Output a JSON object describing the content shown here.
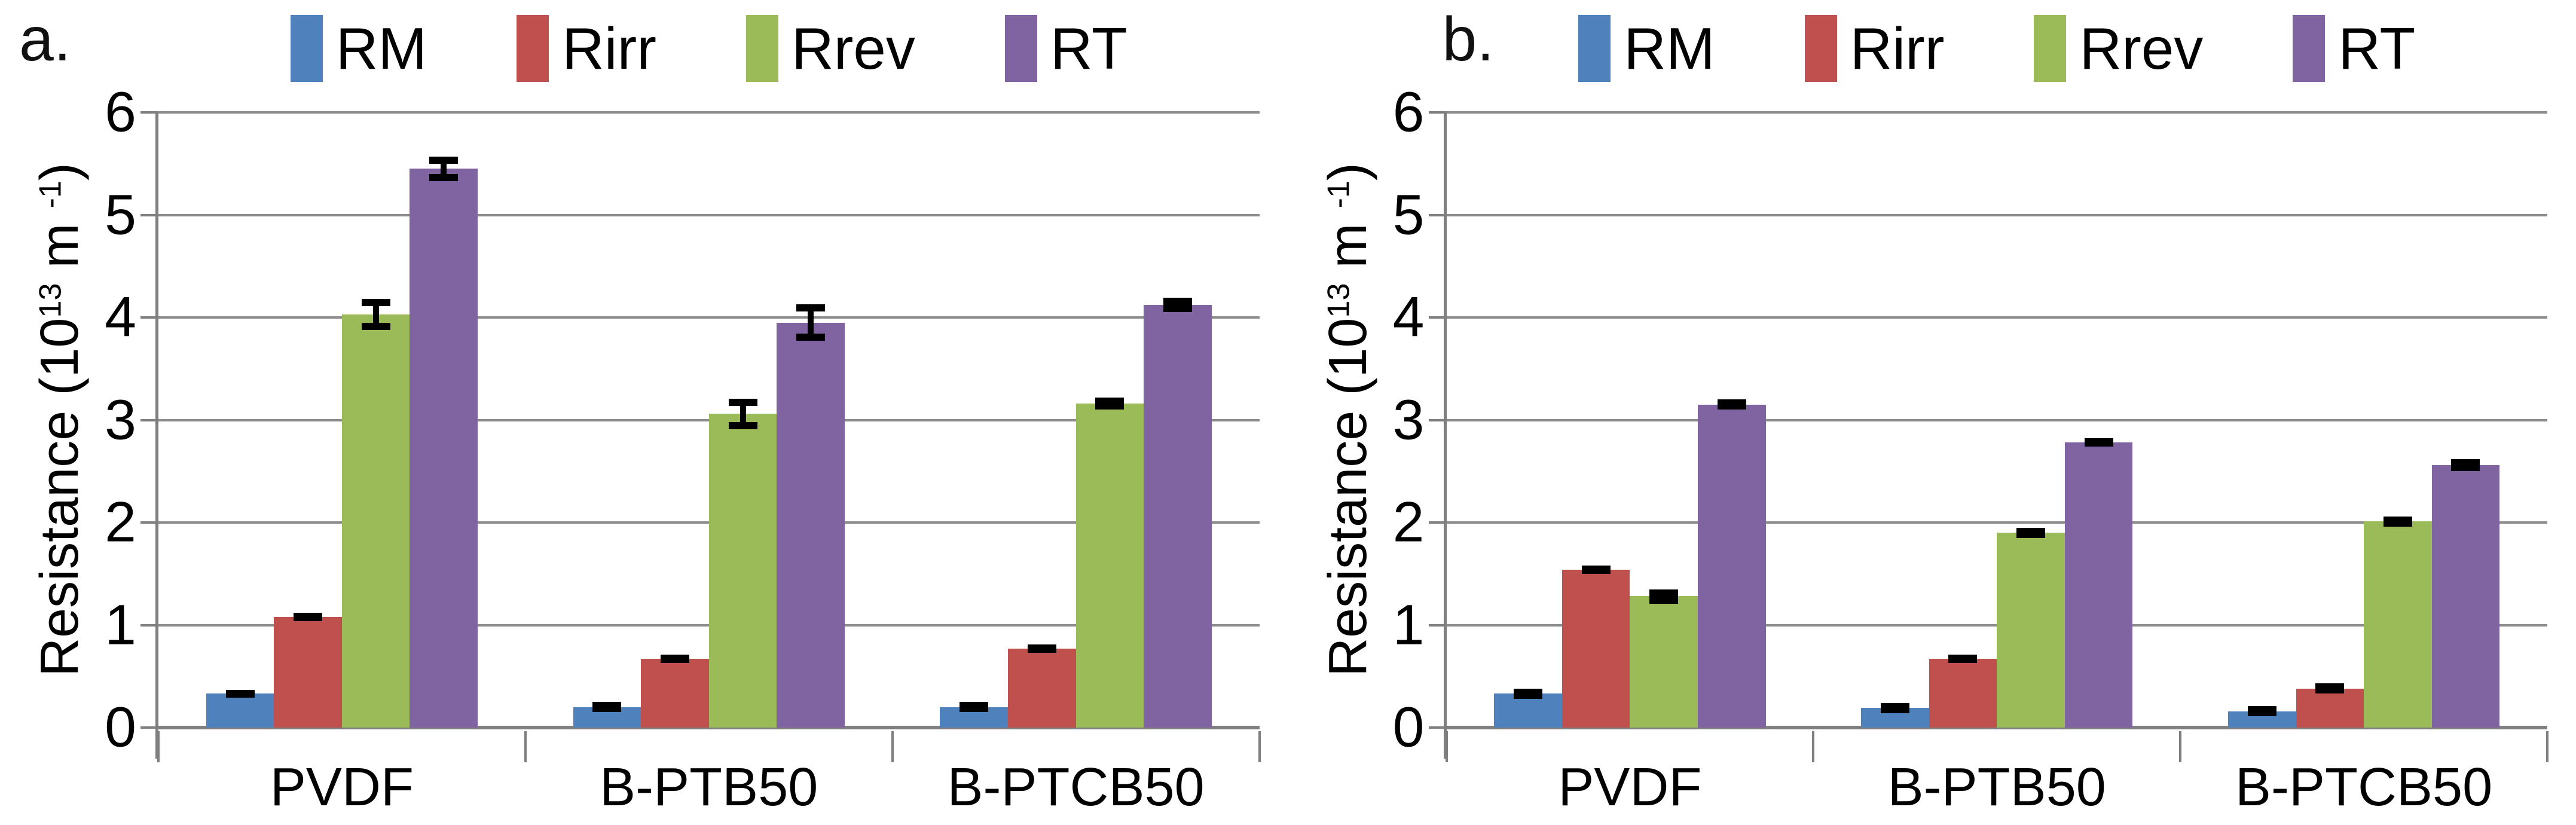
{
  "styles": {
    "background": "#FFFFFF",
    "grid_color": "#8C8C8C",
    "axis_color": "#7F7F7F",
    "error_color": "#000000",
    "text_color": "#000000"
  },
  "chart_data": [
    {
      "id": "a",
      "type": "bar",
      "panel_label": "a.",
      "title": "",
      "xlabel": "",
      "ylabel": "Resistance (10^13 m^-1)",
      "ylabel_segments": [
        {
          "t": "Resistance  (10"
        },
        {
          "t": "13",
          "sup": true
        },
        {
          "t": " m "
        },
        {
          "t": "-1",
          "sup": true
        },
        {
          "t": ")"
        }
      ],
      "ylim": [
        0,
        6
      ],
      "y_ticks": [
        0,
        1,
        2,
        3,
        4,
        5,
        6
      ],
      "grid": true,
      "legend_position": "top",
      "categories": [
        "PVDF",
        "B-PTB50",
        "B-PTCB50"
      ],
      "series": [
        {
          "name": "RM",
          "color": "#4F81BD",
          "values": [
            0.33,
            0.2,
            0.2
          ],
          "errors": [
            0.03,
            0.02,
            0.02
          ]
        },
        {
          "name": "Rirr",
          "color": "#C0504D",
          "values": [
            1.08,
            0.67,
            0.77
          ],
          "errors": [
            0.04,
            0.04,
            0.03
          ]
        },
        {
          "name": "Rrev",
          "color": "#9BBB59",
          "values": [
            4.03,
            3.06,
            3.16
          ],
          "errors": [
            0.15,
            0.15,
            0.06
          ]
        },
        {
          "name": "RT",
          "color": "#8064A2",
          "values": [
            5.45,
            3.95,
            4.12
          ],
          "errors": [
            0.12,
            0.18,
            0.07
          ]
        }
      ]
    },
    {
      "id": "b",
      "type": "bar",
      "panel_label": "b.",
      "title": "",
      "xlabel": "",
      "ylabel": "Resistance (10^13 m^-1)",
      "ylabel_segments": [
        {
          "t": "Resistance  (10"
        },
        {
          "t": "13",
          "sup": true
        },
        {
          "t": " m "
        },
        {
          "t": "-1",
          "sup": true
        },
        {
          "t": ")"
        }
      ],
      "ylim": [
        0,
        6
      ],
      "y_ticks": [
        0,
        1,
        2,
        3,
        4,
        5,
        6
      ],
      "grid": true,
      "legend_position": "top",
      "categories": [
        "PVDF",
        "B-PTB50",
        "B-PTCB50"
      ],
      "series": [
        {
          "name": "RM",
          "color": "#4F81BD",
          "values": [
            0.33,
            0.19,
            0.16
          ],
          "errors": [
            0.02,
            0.02,
            0.02
          ]
        },
        {
          "name": "Rirr",
          "color": "#C0504D",
          "values": [
            1.54,
            0.67,
            0.38
          ],
          "errors": [
            0.03,
            0.04,
            0.02
          ]
        },
        {
          "name": "Rrev",
          "color": "#9BBB59",
          "values": [
            1.28,
            1.9,
            2.01
          ],
          "errors": [
            0.07,
            0.05,
            0.05
          ]
        },
        {
          "name": "RT",
          "color": "#8064A2",
          "values": [
            3.15,
            2.78,
            2.56
          ],
          "errors": [
            0.05,
            0.03,
            0.06
          ]
        }
      ]
    }
  ]
}
